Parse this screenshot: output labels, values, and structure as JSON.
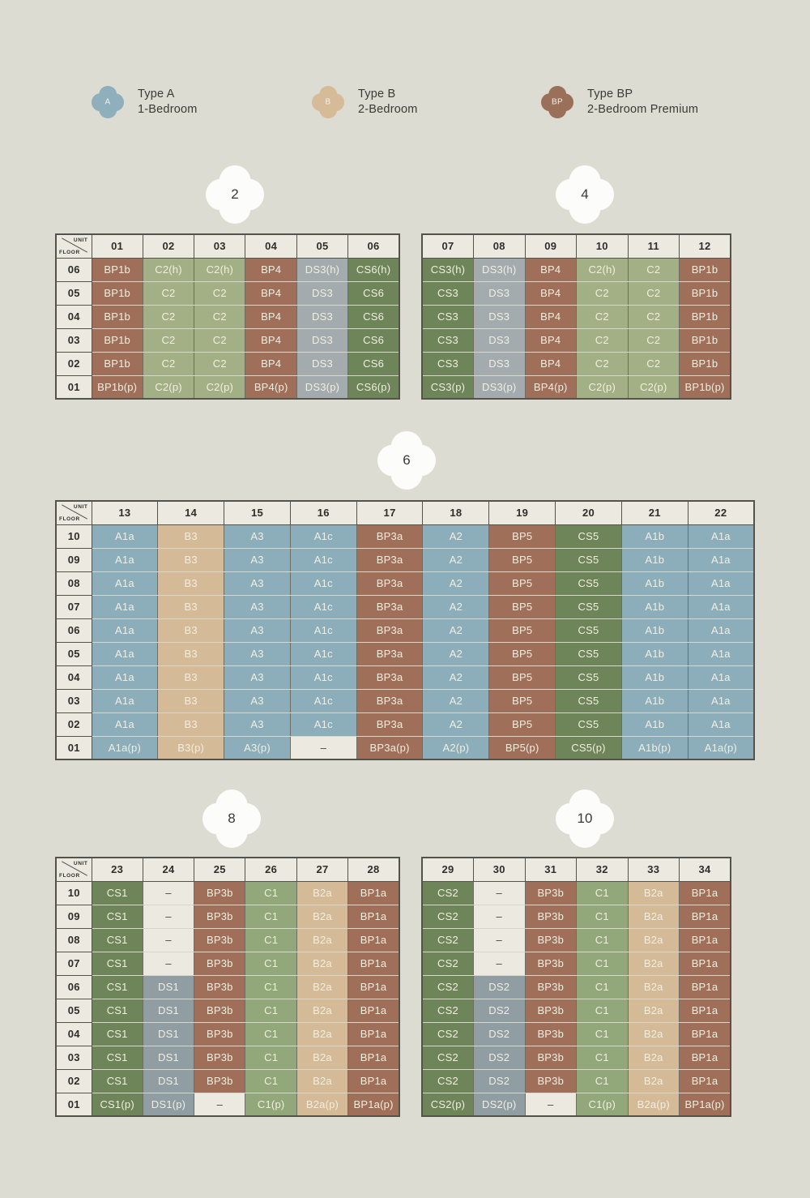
{
  "page": {
    "background": "#dcdcd3",
    "marker_color": "#fcfcfa"
  },
  "legend": {
    "items": [
      {
        "letter": "A",
        "title": "Type A",
        "subtitle": "1-Bedroom",
        "color": "#8fafbc"
      },
      {
        "letter": "B",
        "title": "Type B",
        "subtitle": "2-Bedroom",
        "color": "#d6bb98"
      },
      {
        "letter": "BP",
        "title": "Type BP",
        "subtitle": "2-Bedroom Premium",
        "color": "#9a705b"
      }
    ]
  },
  "corner": {
    "unit": "UNIT",
    "floor": "FLOOR"
  },
  "markers": [
    {
      "label": "2"
    },
    {
      "label": "4"
    },
    {
      "label": "6"
    },
    {
      "label": "8"
    },
    {
      "label": "10"
    }
  ],
  "palette": {
    "bp": "#a06f59",
    "c2": "#a3b085",
    "c1": "#92a77a",
    "cs": "#6e8459",
    "ds3": "#a3abae",
    "ds": "#909da3",
    "a": "#8caebb",
    "b": "#d5ba97",
    "empty": "#ebe9e0"
  },
  "blocks": [
    {
      "id": "2",
      "has_floor_col": true,
      "columns": [
        "01",
        "02",
        "03",
        "04",
        "05",
        "06"
      ],
      "floors": [
        "06",
        "05",
        "04",
        "03",
        "02",
        "01"
      ],
      "rows": [
        [
          "BP1b|bp",
          "C2(h)|c2",
          "C2(h)|c2",
          "BP4|bp",
          "DS3(h)|ds3",
          "CS6(h)|cs"
        ],
        [
          "BP1b|bp",
          "C2|c2",
          "C2|c2",
          "BP4|bp",
          "DS3|ds3",
          "CS6|cs"
        ],
        [
          "BP1b|bp",
          "C2|c2",
          "C2|c2",
          "BP4|bp",
          "DS3|ds3",
          "CS6|cs"
        ],
        [
          "BP1b|bp",
          "C2|c2",
          "C2|c2",
          "BP4|bp",
          "DS3|ds3",
          "CS6|cs"
        ],
        [
          "BP1b|bp",
          "C2|c2",
          "C2|c2",
          "BP4|bp",
          "DS3|ds3",
          "CS6|cs"
        ],
        [
          "BP1b(p)|bp",
          "C2(p)|c2",
          "C2(p)|c2",
          "BP4(p)|bp",
          "DS3(p)|ds3",
          "CS6(p)|cs"
        ]
      ]
    },
    {
      "id": "4",
      "has_floor_col": false,
      "columns": [
        "07",
        "08",
        "09",
        "10",
        "11",
        "12"
      ],
      "rows": [
        [
          "CS3(h)|cs",
          "DS3(h)|ds3",
          "BP4|bp",
          "C2(h)|c2",
          "C2|c2",
          "BP1b|bp"
        ],
        [
          "CS3|cs",
          "DS3|ds3",
          "BP4|bp",
          "C2|c2",
          "C2|c2",
          "BP1b|bp"
        ],
        [
          "CS3|cs",
          "DS3|ds3",
          "BP4|bp",
          "C2|c2",
          "C2|c2",
          "BP1b|bp"
        ],
        [
          "CS3|cs",
          "DS3|ds3",
          "BP4|bp",
          "C2|c2",
          "C2|c2",
          "BP1b|bp"
        ],
        [
          "CS3|cs",
          "DS3|ds3",
          "BP4|bp",
          "C2|c2",
          "C2|c2",
          "BP1b|bp"
        ],
        [
          "CS3(p)|cs",
          "DS3(p)|ds3",
          "BP4(p)|bp",
          "C2(p)|c2",
          "C2(p)|c2",
          "BP1b(p)|bp"
        ]
      ]
    },
    {
      "id": "6",
      "has_floor_col": true,
      "columns": [
        "13",
        "14",
        "15",
        "16",
        "17",
        "18",
        "19",
        "20",
        "21",
        "22"
      ],
      "floors": [
        "10",
        "09",
        "08",
        "07",
        "06",
        "05",
        "04",
        "03",
        "02",
        "01"
      ],
      "rows": [
        [
          "A1a|a",
          "B3|b",
          "A3|a",
          "A1c|a",
          "BP3a|bp",
          "A2|a",
          "BP5|bp",
          "CS5|cs",
          "A1b|a",
          "A1a|a"
        ],
        [
          "A1a|a",
          "B3|b",
          "A3|a",
          "A1c|a",
          "BP3a|bp",
          "A2|a",
          "BP5|bp",
          "CS5|cs",
          "A1b|a",
          "A1a|a"
        ],
        [
          "A1a|a",
          "B3|b",
          "A3|a",
          "A1c|a",
          "BP3a|bp",
          "A2|a",
          "BP5|bp",
          "CS5|cs",
          "A1b|a",
          "A1a|a"
        ],
        [
          "A1a|a",
          "B3|b",
          "A3|a",
          "A1c|a",
          "BP3a|bp",
          "A2|a",
          "BP5|bp",
          "CS5|cs",
          "A1b|a",
          "A1a|a"
        ],
        [
          "A1a|a",
          "B3|b",
          "A3|a",
          "A1c|a",
          "BP3a|bp",
          "A2|a",
          "BP5|bp",
          "CS5|cs",
          "A1b|a",
          "A1a|a"
        ],
        [
          "A1a|a",
          "B3|b",
          "A3|a",
          "A1c|a",
          "BP3a|bp",
          "A2|a",
          "BP5|bp",
          "CS5|cs",
          "A1b|a",
          "A1a|a"
        ],
        [
          "A1a|a",
          "B3|b",
          "A3|a",
          "A1c|a",
          "BP3a|bp",
          "A2|a",
          "BP5|bp",
          "CS5|cs",
          "A1b|a",
          "A1a|a"
        ],
        [
          "A1a|a",
          "B3|b",
          "A3|a",
          "A1c|a",
          "BP3a|bp",
          "A2|a",
          "BP5|bp",
          "CS5|cs",
          "A1b|a",
          "A1a|a"
        ],
        [
          "A1a|a",
          "B3|b",
          "A3|a",
          "A1c|a",
          "BP3a|bp",
          "A2|a",
          "BP5|bp",
          "CS5|cs",
          "A1b|a",
          "A1a|a"
        ],
        [
          "A1a(p)|a",
          "B3(p)|b",
          "A3(p)|a",
          "–|empty",
          "BP3a(p)|bp",
          "A2(p)|a",
          "BP5(p)|bp",
          "CS5(p)|cs",
          "A1b(p)|a",
          "A1a(p)|a"
        ]
      ]
    },
    {
      "id": "8",
      "has_floor_col": true,
      "columns": [
        "23",
        "24",
        "25",
        "26",
        "27",
        "28"
      ],
      "floors": [
        "10",
        "09",
        "08",
        "07",
        "06",
        "05",
        "04",
        "03",
        "02",
        "01"
      ],
      "rows": [
        [
          "CS1|cs",
          "–|empty",
          "BP3b|bp",
          "C1|c1",
          "B2a|b",
          "BP1a|bp"
        ],
        [
          "CS1|cs",
          "–|empty",
          "BP3b|bp",
          "C1|c1",
          "B2a|b",
          "BP1a|bp"
        ],
        [
          "CS1|cs",
          "–|empty",
          "BP3b|bp",
          "C1|c1",
          "B2a|b",
          "BP1a|bp"
        ],
        [
          "CS1|cs",
          "–|empty",
          "BP3b|bp",
          "C1|c1",
          "B2a|b",
          "BP1a|bp"
        ],
        [
          "CS1|cs",
          "DS1|ds",
          "BP3b|bp",
          "C1|c1",
          "B2a|b",
          "BP1a|bp"
        ],
        [
          "CS1|cs",
          "DS1|ds",
          "BP3b|bp",
          "C1|c1",
          "B2a|b",
          "BP1a|bp"
        ],
        [
          "CS1|cs",
          "DS1|ds",
          "BP3b|bp",
          "C1|c1",
          "B2a|b",
          "BP1a|bp"
        ],
        [
          "CS1|cs",
          "DS1|ds",
          "BP3b|bp",
          "C1|c1",
          "B2a|b",
          "BP1a|bp"
        ],
        [
          "CS1|cs",
          "DS1|ds",
          "BP3b|bp",
          "C1|c1",
          "B2a|b",
          "BP1a|bp"
        ],
        [
          "CS1(p)|cs",
          "DS1(p)|ds",
          "–|empty",
          "C1(p)|c1",
          "B2a(p)|b",
          "BP1a(p)|bp"
        ]
      ]
    },
    {
      "id": "10",
      "has_floor_col": false,
      "columns": [
        "29",
        "30",
        "31",
        "32",
        "33",
        "34"
      ],
      "rows": [
        [
          "CS2|cs",
          "–|empty",
          "BP3b|bp",
          "C1|c1",
          "B2a|b",
          "BP1a|bp"
        ],
        [
          "CS2|cs",
          "–|empty",
          "BP3b|bp",
          "C1|c1",
          "B2a|b",
          "BP1a|bp"
        ],
        [
          "CS2|cs",
          "–|empty",
          "BP3b|bp",
          "C1|c1",
          "B2a|b",
          "BP1a|bp"
        ],
        [
          "CS2|cs",
          "–|empty",
          "BP3b|bp",
          "C1|c1",
          "B2a|b",
          "BP1a|bp"
        ],
        [
          "CS2|cs",
          "DS2|ds",
          "BP3b|bp",
          "C1|c1",
          "B2a|b",
          "BP1a|bp"
        ],
        [
          "CS2|cs",
          "DS2|ds",
          "BP3b|bp",
          "C1|c1",
          "B2a|b",
          "BP1a|bp"
        ],
        [
          "CS2|cs",
          "DS2|ds",
          "BP3b|bp",
          "C1|c1",
          "B2a|b",
          "BP1a|bp"
        ],
        [
          "CS2|cs",
          "DS2|ds",
          "BP3b|bp",
          "C1|c1",
          "B2a|b",
          "BP1a|bp"
        ],
        [
          "CS2|cs",
          "DS2|ds",
          "BP3b|bp",
          "C1|c1",
          "B2a|b",
          "BP1a|bp"
        ],
        [
          "CS2(p)|cs",
          "DS2(p)|ds",
          "–|empty",
          "C1(p)|c1",
          "B2a(p)|b",
          "BP1a(p)|bp"
        ]
      ]
    }
  ]
}
